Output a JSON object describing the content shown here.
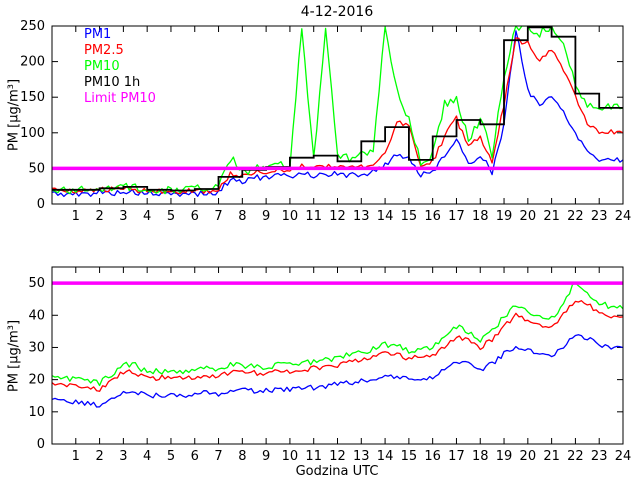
{
  "figure": {
    "title": "4-12-2016"
  },
  "chart_data": [
    {
      "type": "line",
      "title": "",
      "ylabel": "PM [µg/m³]",
      "xlim": [
        0,
        24
      ],
      "ylim": [
        0,
        250
      ],
      "xticks": [
        1,
        2,
        3,
        4,
        5,
        6,
        7,
        8,
        9,
        10,
        11,
        12,
        13,
        14,
        15,
        16,
        17,
        18,
        19,
        20,
        21,
        22,
        23,
        24
      ],
      "yticks": [
        0,
        50,
        100,
        150,
        200,
        250
      ],
      "grid": false,
      "legend_position": "top-left",
      "x": [
        0,
        0.5,
        1,
        1.5,
        2,
        2.5,
        3,
        3.5,
        4,
        4.5,
        5,
        5.5,
        6,
        6.5,
        7,
        7.5,
        8,
        8.5,
        9,
        9.5,
        10,
        10.5,
        11,
        11.5,
        12,
        12.5,
        13,
        13.5,
        14,
        14.5,
        15,
        15.5,
        16,
        16.5,
        17,
        17.5,
        18,
        18.5,
        19,
        19.5,
        20,
        20.5,
        21,
        21.5,
        22,
        22.5,
        23,
        23.5,
        24
      ],
      "series": [
        {
          "name": "PM1",
          "color": "#0000ff",
          "noise": 4,
          "values": [
            15,
            14,
            13,
            14,
            17,
            15,
            18,
            16,
            15,
            14,
            13,
            14,
            15,
            14,
            16,
            35,
            32,
            38,
            36,
            40,
            38,
            45,
            40,
            42,
            42,
            40,
            42,
            45,
            55,
            70,
            65,
            40,
            45,
            70,
            90,
            55,
            70,
            45,
            110,
            245,
            160,
            140,
            150,
            130,
            100,
            75,
            62,
            63,
            62
          ]
        },
        {
          "name": "PM2.5",
          "color": "#ff0000",
          "noise": 4,
          "values": [
            20,
            18,
            17,
            18,
            21,
            20,
            23,
            20,
            19,
            18,
            17,
            18,
            19,
            18,
            20,
            42,
            40,
            46,
            44,
            48,
            47,
            55,
            50,
            52,
            52,
            50,
            52,
            55,
            70,
            115,
            110,
            55,
            60,
            95,
            120,
            80,
            95,
            60,
            140,
            230,
            225,
            200,
            215,
            190,
            150,
            115,
            100,
            102,
            100
          ]
        },
        {
          "name": "PM10",
          "color": "#00ff00",
          "noise": 6,
          "values": [
            22,
            20,
            19,
            20,
            24,
            22,
            26,
            23,
            21,
            20,
            19,
            20,
            22,
            20,
            23,
            65,
            45,
            50,
            48,
            55,
            52,
            250,
            60,
            250,
            70,
            65,
            70,
            75,
            250,
            160,
            120,
            60,
            70,
            140,
            150,
            90,
            120,
            70,
            180,
            250,
            250,
            240,
            250,
            220,
            170,
            140,
            135,
            138,
            135
          ]
        },
        {
          "name": "PM10 1h",
          "color": "#000000",
          "type": "step",
          "values": [
            20,
            20,
            22,
            24,
            20,
            19,
            21,
            38,
            48,
            52,
            65,
            68,
            60,
            88,
            108,
            62,
            95,
            118,
            112,
            230,
            248,
            235,
            155,
            135
          ]
        },
        {
          "name": "Limit PM10",
          "color": "#ff00ff",
          "type": "hline",
          "value": 50
        }
      ]
    },
    {
      "type": "line",
      "title": "",
      "ylabel": "PM [µg/m³]",
      "xlabel": "Godzina UTC",
      "xlim": [
        0,
        24
      ],
      "ylim": [
        0,
        55
      ],
      "xticks": [
        1,
        2,
        3,
        4,
        5,
        6,
        7,
        8,
        9,
        10,
        11,
        12,
        13,
        14,
        15,
        16,
        17,
        18,
        19,
        20,
        21,
        22,
        23,
        24
      ],
      "yticks": [
        0,
        10,
        20,
        30,
        40,
        50
      ],
      "grid": false,
      "x": [
        0,
        0.5,
        1,
        1.5,
        2,
        2.5,
        3,
        3.5,
        4,
        4.5,
        5,
        5.5,
        6,
        6.5,
        7,
        7.5,
        8,
        8.5,
        9,
        9.5,
        10,
        10.5,
        11,
        11.5,
        12,
        12.5,
        13,
        13.5,
        14,
        14.5,
        15,
        15.5,
        16,
        16.5,
        17,
        17.5,
        18,
        18.5,
        19,
        19.5,
        20,
        20.5,
        21,
        21.5,
        22,
        22.5,
        23,
        23.5,
        24
      ],
      "series": [
        {
          "name": "PM1",
          "color": "#0000ff",
          "noise": 0.8,
          "values": [
            14,
            13.5,
            13,
            12.5,
            12,
            14,
            16.5,
            16,
            15,
            15,
            15.5,
            15,
            15.5,
            16,
            15.5,
            17,
            17,
            16.5,
            16.5,
            17,
            17,
            17.5,
            17.5,
            18,
            18.5,
            19,
            19.5,
            20,
            21.5,
            21,
            20,
            20.5,
            21,
            23,
            26,
            25,
            23,
            25,
            28,
            30,
            29,
            28,
            27,
            30,
            34,
            33,
            31,
            30,
            30
          ]
        },
        {
          "name": "PM2.5",
          "color": "#ff0000",
          "noise": 0.8,
          "values": [
            19,
            18.5,
            18,
            17.5,
            17,
            19.5,
            22.5,
            22,
            20.5,
            20.5,
            21,
            20.5,
            21,
            21.5,
            21,
            22.5,
            22.5,
            22,
            22,
            22.5,
            22.5,
            23,
            23.5,
            24,
            24.5,
            25.5,
            26,
            27,
            28.5,
            28,
            26.5,
            27,
            27.5,
            30,
            33.5,
            32,
            30,
            32.5,
            36.5,
            40,
            38.5,
            37,
            36.5,
            40,
            45,
            43.5,
            41,
            40,
            39.5
          ]
        },
        {
          "name": "PM10",
          "color": "#00ff00",
          "noise": 0.9,
          "values": [
            21,
            20.5,
            20,
            19.5,
            19,
            21.5,
            25,
            24.5,
            22.5,
            22.5,
            23,
            22.5,
            23,
            23.5,
            23,
            25,
            24.5,
            24,
            24,
            24.5,
            24.5,
            25,
            25.5,
            26,
            27,
            28,
            28.5,
            29.5,
            31,
            30.5,
            29,
            29.5,
            30,
            33,
            36.5,
            35,
            32.5,
            35,
            39.5,
            43,
            41.5,
            40,
            39.5,
            43,
            50.5,
            47,
            44,
            42.5,
            42
          ]
        },
        {
          "name": "Limit PM10",
          "color": "#ff00ff",
          "type": "hline",
          "value": 50
        }
      ]
    }
  ]
}
